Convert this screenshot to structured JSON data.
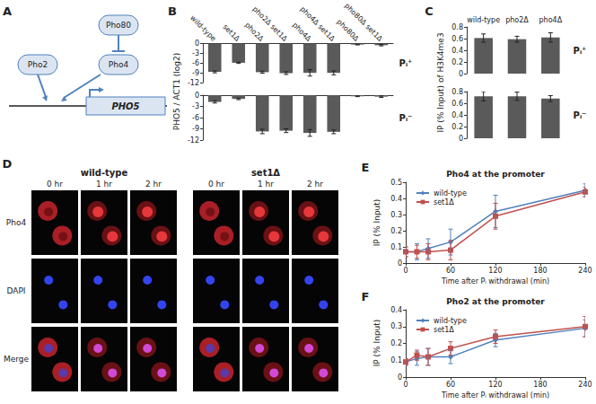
{
  "panels": [
    "A",
    "B",
    "C",
    "D",
    "E",
    "F"
  ],
  "diagram": {
    "repressor": "Pho80",
    "regulators": [
      "Pho2",
      "Pho4"
    ],
    "gene": "PHO5"
  },
  "microscopy": {
    "strains": [
      "wild-type",
      "set1Δ"
    ],
    "times": [
      "0 hr",
      "1 hr",
      "2 hr"
    ],
    "channels": [
      "Pho4",
      "DAPI",
      "Merge"
    ]
  },
  "chart_data": [
    {
      "type": "bar",
      "annotation": "Pᵢ⁺",
      "ylabel": "PHO5 / ACT1 (log2)",
      "categories": [
        "wild-type",
        "set1Δ",
        "pho2Δ",
        "pho2Δ set1Δ",
        "pho4Δ",
        "pho4Δ set1Δ",
        "pho80Δ",
        "pho80Δ set1Δ"
      ],
      "values": [
        -8.7,
        -5.9,
        -8.8,
        -9.1,
        -9.0,
        -9.0,
        -0.3,
        -0.5
      ],
      "errors": [
        0.3,
        0.2,
        0.3,
        0.4,
        1.0,
        0.6,
        0.1,
        0.2
      ],
      "color": "#5a5a5a",
      "ylim": [
        -12,
        0
      ],
      "yticks": [
        -12,
        -9,
        -6,
        -3,
        0
      ],
      "grid": false
    },
    {
      "type": "bar",
      "annotation": "Pᵢ⁻",
      "categories": [
        null,
        null,
        null,
        null,
        null,
        null,
        null,
        null
      ],
      "values": [
        -1.8,
        -1.0,
        -9.7,
        -9.5,
        -10.1,
        -9.8,
        -0.3,
        -0.4
      ],
      "errors": [
        0.3,
        0.2,
        0.6,
        0.5,
        0.9,
        0.5,
        0.1,
        0.2
      ],
      "color": "#5a5a5a",
      "ylim": [
        -12,
        0
      ],
      "yticks": [
        -12,
        -9,
        -6,
        -3,
        0
      ],
      "grid": false
    },
    {
      "type": "bar",
      "annotation": "Pᵢ⁺",
      "ylabel": "IP (% Input) of H3K4me3",
      "categories": [
        "wild-type",
        "pho2Δ",
        "pho4Δ"
      ],
      "values": [
        0.61,
        0.59,
        0.62
      ],
      "errors": [
        0.07,
        0.05,
        0.08
      ],
      "color": "#5a5a5a",
      "ylim": [
        0,
        0.8
      ],
      "yticks": [
        0,
        0.2,
        0.4,
        0.6,
        0.8
      ],
      "grid": false
    },
    {
      "type": "bar",
      "annotation": "Pᵢ⁻",
      "categories": [
        null,
        null,
        null
      ],
      "values": [
        0.72,
        0.72,
        0.68
      ],
      "errors": [
        0.08,
        0.07,
        0.05
      ],
      "color": "#5a5a5a",
      "ylim": [
        0,
        0.8
      ],
      "yticks": [
        0,
        0.2,
        0.4,
        0.6,
        0.8
      ],
      "grid": false
    },
    {
      "type": "line",
      "title": "Pho4 at the promoter",
      "xlabel": "Time after Pᵢ withdrawal (min)",
      "ylabel": "IP (% Input)",
      "x": [
        0,
        15,
        30,
        60,
        120,
        240
      ],
      "series": [
        {
          "name": "wild-type",
          "color": "#4f81bd",
          "marker": "diamond",
          "line_style": "solid",
          "values": [
            0.07,
            0.07,
            0.09,
            0.13,
            0.32,
            0.45
          ],
          "errors": [
            0.03,
            0.05,
            0.06,
            0.08,
            0.1,
            0.04
          ]
        },
        {
          "name": "set1Δ",
          "color": "#c0504d",
          "marker": "square",
          "line_style": "solid",
          "values": [
            0.07,
            0.07,
            0.07,
            0.08,
            0.29,
            0.44
          ],
          "errors": [
            0.03,
            0.04,
            0.05,
            0.06,
            0.08,
            0.03
          ]
        }
      ],
      "xlim": [
        0,
        240
      ],
      "xticks": [
        0,
        60,
        120,
        180,
        240
      ],
      "ylim": [
        0,
        0.5
      ],
      "yticks": [
        0,
        0.1,
        0.2,
        0.3,
        0.4,
        0.5
      ],
      "legend": "upper left",
      "grid": false
    },
    {
      "type": "line",
      "title": "Pho2 at the promoter",
      "xlabel": "Time after Pᵢ withdrawal (min)",
      "ylabel": "IP (% Input)",
      "x": [
        0,
        15,
        30,
        60,
        120,
        240
      ],
      "series": [
        {
          "name": "wild-type",
          "color": "#4f81bd",
          "marker": "diamond",
          "line_style": "solid",
          "values": [
            0.09,
            0.11,
            0.12,
            0.12,
            0.22,
            0.29
          ],
          "errors": [
            0.02,
            0.04,
            0.05,
            0.04,
            0.04,
            0.05
          ]
        },
        {
          "name": "set1Δ",
          "color": "#c0504d",
          "marker": "square",
          "line_style": "solid",
          "values": [
            0.09,
            0.13,
            0.12,
            0.17,
            0.24,
            0.3
          ],
          "errors": [
            0.02,
            0.03,
            0.05,
            0.04,
            0.04,
            0.06
          ]
        }
      ],
      "xlim": [
        0,
        240
      ],
      "xticks": [
        0,
        60,
        120,
        180,
        240
      ],
      "ylim": [
        0,
        0.4
      ],
      "yticks": [
        0,
        0.1,
        0.2,
        0.3,
        0.4
      ],
      "legend": "upper left",
      "grid": false
    }
  ]
}
